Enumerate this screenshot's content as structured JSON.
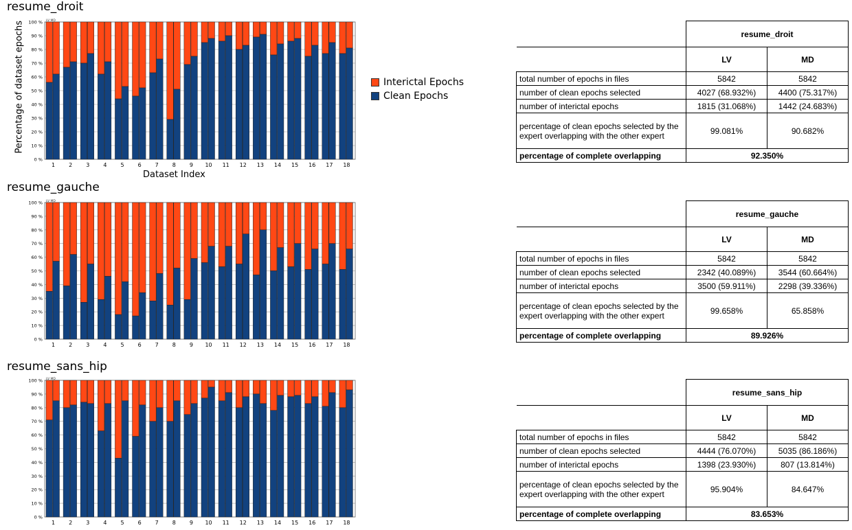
{
  "colors": {
    "clean": "#12427f",
    "interictal": "#ff4815"
  },
  "legend": {
    "interictal": "Interictal Epochs",
    "clean": "Clean Epochs"
  },
  "axis_labels": {
    "x": "Dataset Index",
    "y": "Percentage of dataset epochs"
  },
  "bar_pair_labels": [
    "LV",
    "MD"
  ],
  "y_ticks": [
    "0 %",
    "10 %",
    "20 %",
    "30 %",
    "40 %",
    "50 %",
    "60 %",
    "70 %",
    "80 %",
    "90 %",
    "100 %"
  ],
  "x_ticks": [
    "1",
    "2",
    "3",
    "4",
    "5",
    "6",
    "7",
    "8",
    "9",
    "10",
    "11",
    "12",
    "13",
    "14",
    "15",
    "16",
    "17",
    "18"
  ],
  "row_labels": {
    "total": "total number of epochs in files",
    "clean": "number of clean epochs selected",
    "interictal": "number of interictal epochs",
    "overlap": "percentage of clean epochs selected by the expert overlapping with the other expert",
    "complete": "percentage of complete overlapping"
  },
  "chart_data": [
    {
      "type": "bar",
      "title": "resume_droit",
      "categories": [
        "1",
        "2",
        "3",
        "4",
        "5",
        "6",
        "7",
        "8",
        "9",
        "10",
        "11",
        "12",
        "13",
        "14",
        "15",
        "16",
        "17",
        "18"
      ],
      "stacked": true,
      "ylim": [
        0,
        100
      ],
      "series": [
        {
          "name": "LV",
          "clean": [
            56,
            67,
            70,
            62,
            44,
            46,
            63,
            29,
            69,
            85,
            86,
            80,
            89,
            76,
            86,
            75,
            77,
            77
          ]
        },
        {
          "name": "MD",
          "clean": [
            62,
            71,
            77,
            71,
            53,
            52,
            73,
            51,
            75,
            88,
            90,
            83,
            91,
            84,
            88,
            83,
            85,
            81
          ]
        }
      ],
      "table": {
        "title": "resume_droit",
        "total": [
          "5842",
          "5842"
        ],
        "clean": [
          "4027 (68.932%)",
          "4400 (75.317%)"
        ],
        "interictal": [
          "1815 (31.068%)",
          "1442 (24.683%)"
        ],
        "overlap": [
          "99.081%",
          "90.682%"
        ],
        "complete": "92.350%"
      }
    },
    {
      "type": "bar",
      "title": "resume_gauche",
      "categories": [
        "1",
        "2",
        "3",
        "4",
        "5",
        "6",
        "7",
        "8",
        "9",
        "10",
        "11",
        "12",
        "13",
        "14",
        "15",
        "16",
        "17",
        "18"
      ],
      "stacked": true,
      "ylim": [
        0,
        100
      ],
      "series": [
        {
          "name": "LV",
          "clean": [
            35,
            39,
            27,
            29,
            18,
            17,
            28,
            25,
            29,
            56,
            53,
            55,
            47,
            50,
            53,
            51,
            55,
            51
          ]
        },
        {
          "name": "MD",
          "clean": [
            57,
            62,
            55,
            46,
            42,
            34,
            48,
            52,
            59,
            68,
            68,
            77,
            80,
            67,
            70,
            66,
            70,
            66
          ]
        }
      ],
      "table": {
        "title": "resume_gauche",
        "total": [
          "5842",
          "5842"
        ],
        "clean": [
          "2342 (40.089%)",
          "3544 (60.664%)"
        ],
        "interictal": [
          "3500 (59.911%)",
          "2298 (39.336%)"
        ],
        "overlap": [
          "99.658%",
          "65.858%"
        ],
        "complete": "89.926%"
      }
    },
    {
      "type": "bar",
      "title": "resume_sans_hip",
      "categories": [
        "1",
        "2",
        "3",
        "4",
        "5",
        "6",
        "7",
        "8",
        "9",
        "10",
        "11",
        "12",
        "13",
        "14",
        "15",
        "16",
        "17",
        "18"
      ],
      "stacked": true,
      "ylim": [
        0,
        100
      ],
      "series": [
        {
          "name": "LV",
          "clean": [
            71,
            80,
            84,
            63,
            43,
            59,
            70,
            70,
            75,
            87,
            85,
            80,
            90,
            78,
            88,
            83,
            81,
            80
          ]
        },
        {
          "name": "MD",
          "clean": [
            85,
            82,
            83,
            83,
            85,
            82,
            80,
            85,
            83,
            95,
            91,
            88,
            83,
            89,
            89,
            88,
            91,
            93
          ]
        }
      ],
      "table": {
        "title": "resume_sans_hip",
        "total": [
          "5842",
          "5842"
        ],
        "clean": [
          "4444 (76.070%)",
          "5035 (86.186%)"
        ],
        "interictal": [
          "1398 (23.930%)",
          "807 (13.814%)"
        ],
        "overlap": [
          "95.904%",
          "84.647%"
        ],
        "complete": "83.653%"
      }
    }
  ]
}
